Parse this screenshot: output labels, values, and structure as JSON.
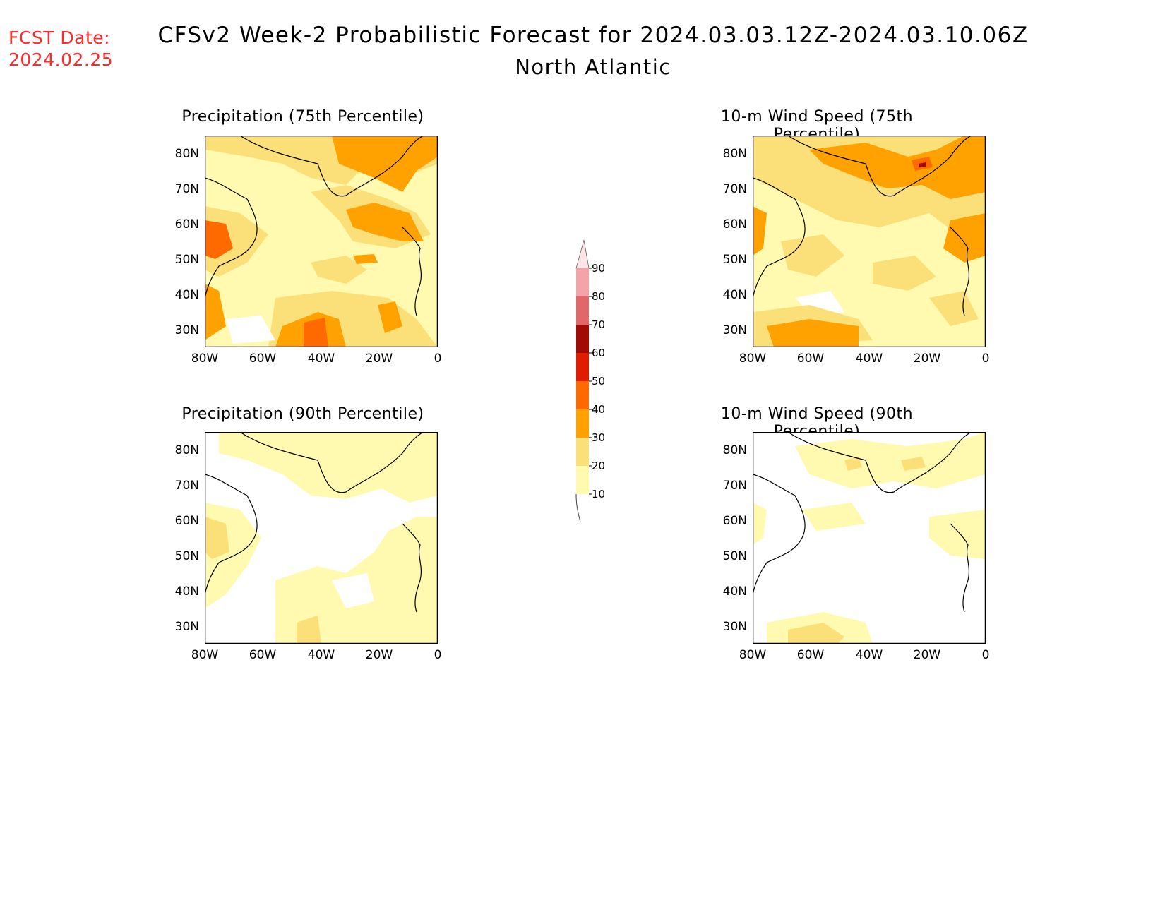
{
  "header": {
    "fcst_label": "FCST Date:",
    "fcst_date": "2024.02.25",
    "title": "CFSv2 Week-2 Probabilistic Forecast for 2024.03.03.12Z-2024.03.10.06Z",
    "subtitle": "North Atlantic"
  },
  "panels": [
    {
      "title": "Precipitation (75th Percentile)"
    },
    {
      "title": "10-m Wind Speed (75th Percentile)"
    },
    {
      "title": "Precipitation (90th Percentile)"
    },
    {
      "title": "10-m Wind Speed (90th Percentile)"
    }
  ],
  "axes": {
    "lat_ticks": [
      "80N",
      "70N",
      "60N",
      "50N",
      "40N",
      "30N"
    ],
    "lon_ticks": [
      "80W",
      "60W",
      "40W",
      "20W",
      "0"
    ]
  },
  "colorbar": {
    "levels": [
      "90",
      "80",
      "70",
      "60",
      "50",
      "40",
      "30",
      "20",
      "10"
    ],
    "colors": [
      "#fde4e6",
      "#f4a3a8",
      "#e06868",
      "#a10a05",
      "#e01d00",
      "#ff6a00",
      "#ffa200",
      "#fbe07a",
      "#fffab0"
    ]
  },
  "palette": {
    "p10": "#fffab0",
    "p20": "#fbe07a",
    "p30": "#ffa200",
    "p40": "#ff6a00",
    "p50": "#e01d00",
    "p60": "#a10a05"
  }
}
